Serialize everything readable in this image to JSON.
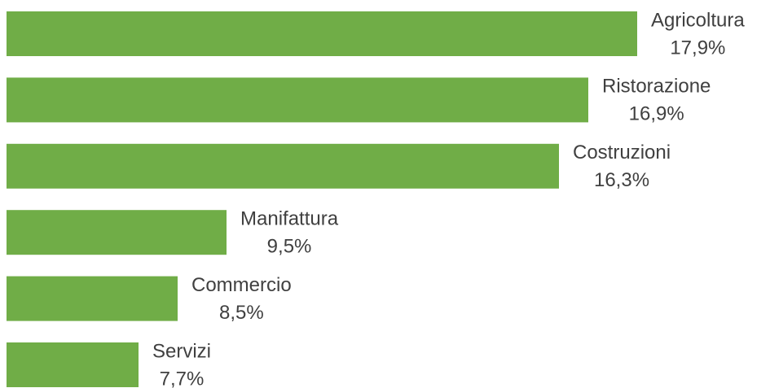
{
  "chart_data": {
    "type": "bar",
    "orientation": "horizontal",
    "categories": [
      "Agricoltura",
      "Ristorazione",
      "Costruzioni",
      "Manifattura",
      "Commercio",
      "Servizi"
    ],
    "values": [
      17.9,
      16.9,
      16.3,
      9.5,
      8.5,
      7.7
    ],
    "value_labels": [
      "17,9%",
      "16,9%",
      "16,3%",
      "9,5%",
      "8,5%",
      "7,7%"
    ],
    "color": "#70ad47",
    "xlim": [
      5,
      20
    ]
  }
}
